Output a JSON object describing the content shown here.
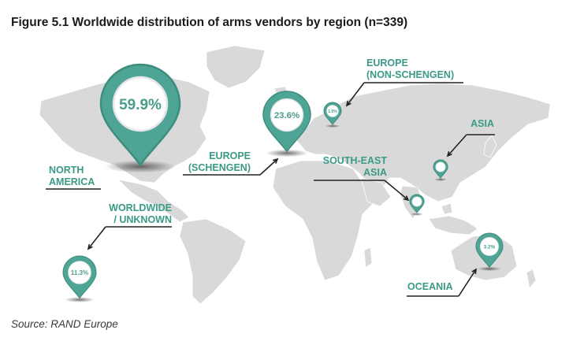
{
  "figure": {
    "title": "Figure 5.1 Worldwide distribution of arms vendors by region (n=339)",
    "source": "Source: RAND Europe"
  },
  "colors": {
    "accent": "#4fa595",
    "accent_dark": "#3c8d7e",
    "land": "#d9d9d9",
    "label": "#3a9a86",
    "leader": "#222222"
  },
  "chart_data": {
    "type": "map",
    "title": "Figure 5.1 Worldwide distribution of arms vendors by region (n=339)",
    "n": 339,
    "regions": [
      {
        "label_lines": [
          "NORTH",
          "AMERICA"
        ],
        "value": 59.9,
        "display": "59.9%"
      },
      {
        "label_lines": [
          "EUROPE",
          "(SCHENGEN)"
        ],
        "value": 23.6,
        "display": "23.6%"
      },
      {
        "label_lines": [
          "WORLDWIDE",
          "/ UNKNOWN"
        ],
        "value": 11.3,
        "display": "11.3%"
      },
      {
        "label_lines": [
          "OCEANIA"
        ],
        "value": 3.2,
        "display": "3.2%"
      },
      {
        "label_lines": [
          "EUROPE",
          "(NON-SCHENGEN)"
        ],
        "value": 1.5,
        "display": "1.5%"
      },
      {
        "label_lines": [
          "ASIA"
        ],
        "value": null,
        "display": ""
      },
      {
        "label_lines": [
          "SOUTH-EAST",
          "ASIA"
        ],
        "value": null,
        "display": ""
      }
    ]
  }
}
